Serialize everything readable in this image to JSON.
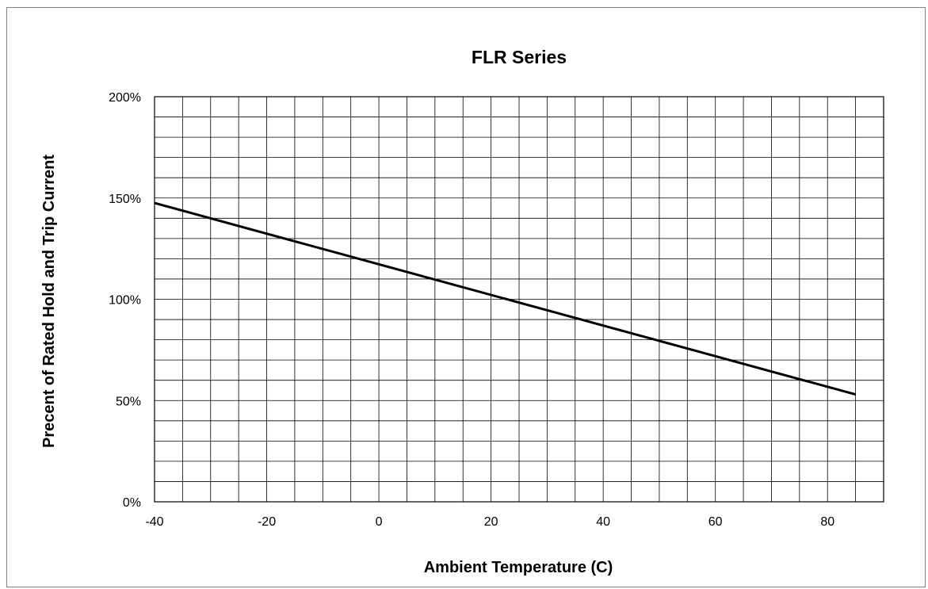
{
  "chart_data": {
    "type": "line",
    "title": "FLR Series",
    "xlabel": "Ambient Temperature (C)",
    "ylabel": "Precent of Rated Hold and Trip Current",
    "xlim": [
      -40,
      90
    ],
    "ylim": [
      0,
      200
    ],
    "x_ticks": [
      -40,
      -20,
      0,
      20,
      40,
      60,
      80
    ],
    "x_tick_labels": [
      "-40",
      "-20",
      "0",
      "20",
      "40",
      "60",
      "80"
    ],
    "y_ticks": [
      0,
      50,
      100,
      150,
      200
    ],
    "y_tick_labels": [
      "0%",
      "50%",
      "100%",
      "150%",
      "200%"
    ],
    "x_grid_step": 5,
    "y_grid_step": 10,
    "grid": true,
    "legend": "none",
    "series": [
      {
        "color": "#000000",
        "x": [
          -40,
          85
        ],
        "y": [
          147.5,
          53
        ]
      }
    ]
  }
}
